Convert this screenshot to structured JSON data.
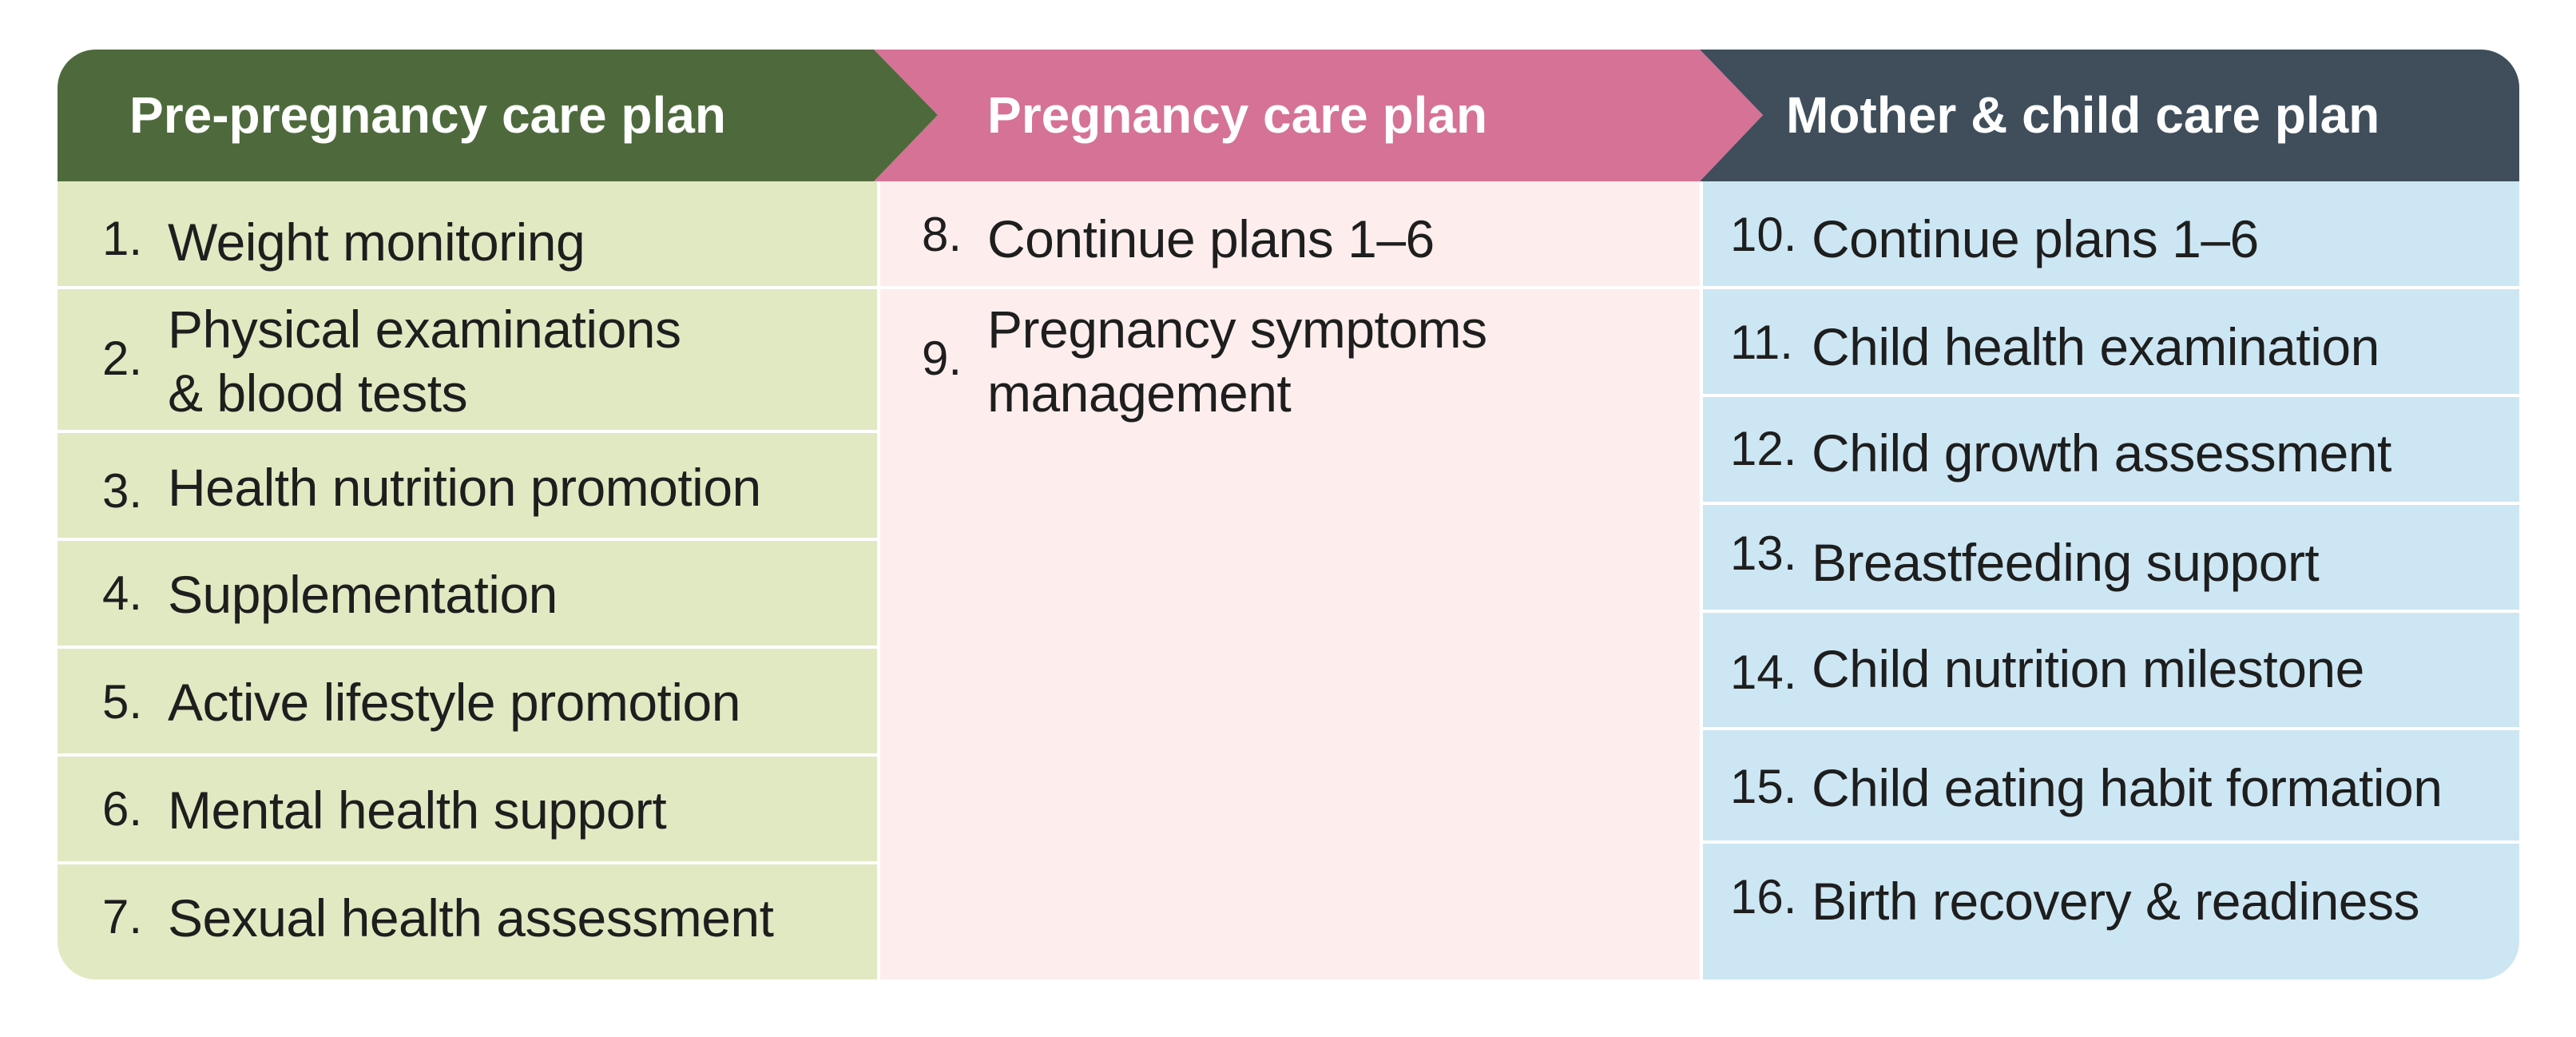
{
  "colors": {
    "pre_header": "#4e6a3d",
    "preg_header": "#d57295",
    "mc_header": "#3f4e5a",
    "pre_body": "#e1e9c3",
    "preg_body": "#fdeeed",
    "mc_body": "#cde6f3"
  },
  "columns": [
    {
      "title": "Pre-pregnancy care plan",
      "items": [
        {
          "num": "1.",
          "text": "Weight monitoring"
        },
        {
          "num": "2.",
          "line1": "Physical examinations",
          "line2": "& blood tests"
        },
        {
          "num": "3.",
          "text": "Health nutrition promotion"
        },
        {
          "num": "4.",
          "text": "Supplementation"
        },
        {
          "num": "5.",
          "text": "Active lifestyle promotion"
        },
        {
          "num": "6.",
          "text": "Mental health support"
        },
        {
          "num": "7.",
          "text": "Sexual health assessment"
        }
      ]
    },
    {
      "title": "Pregnancy care plan",
      "items": [
        {
          "num": "8.",
          "text": "Continue plans 1–6"
        },
        {
          "num": "9.",
          "line1": "Pregnancy symptoms",
          "line2": "management"
        }
      ]
    },
    {
      "title": "Mother & child care plan",
      "items": [
        {
          "num": "10.",
          "text": "Continue plans 1–6"
        },
        {
          "num": "11.",
          "text": "Child health examination"
        },
        {
          "num": "12.",
          "text": "Child growth assessment"
        },
        {
          "num": "13.",
          "text": "Breastfeeding support"
        },
        {
          "num": "14.",
          "text": "Child nutrition milestone"
        },
        {
          "num": "15.",
          "text": "Child eating habit formation"
        },
        {
          "num": "16.",
          "text": "Birth recovery & readiness"
        }
      ]
    }
  ]
}
